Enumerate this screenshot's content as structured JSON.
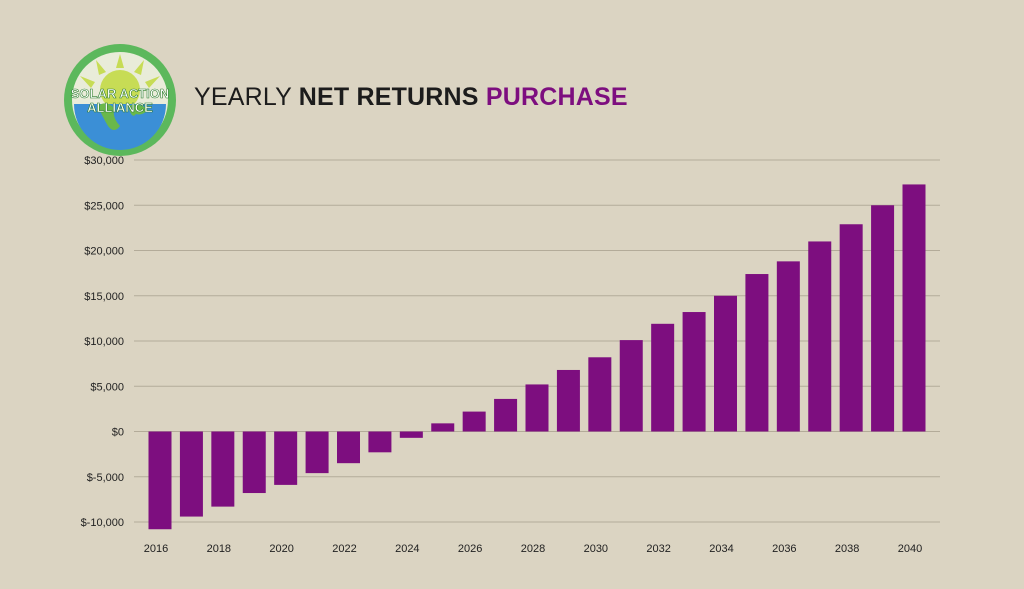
{
  "logo": {
    "line1": "SOLAR ACTION",
    "line2": "ALLIANCE"
  },
  "title": {
    "part1": "YEARLY ",
    "part2": "NET RETURNS ",
    "part3": "PURCHASE"
  },
  "colors": {
    "background": "#dbd4c2",
    "bar": "#7d0e7f",
    "grid": "#b3ab99",
    "title_accent": "#7d0e7f",
    "logo_green": "#5cb85c",
    "logo_blue": "#3b8fd6"
  },
  "chart_data": {
    "type": "bar",
    "title": "YEARLY NET RETURNS PURCHASE",
    "xlabel": "",
    "ylabel": "",
    "ylim": [
      -10000,
      30000
    ],
    "yticks": [
      30000,
      25000,
      20000,
      15000,
      10000,
      5000,
      0,
      -5000,
      -10000
    ],
    "ytick_labels": [
      "$30,000",
      "$25,000",
      "$20,000",
      "$15,000",
      "$10,000",
      "$5,000",
      "$0",
      "$-5,000",
      "$-10,000"
    ],
    "categories": [
      "2016",
      "2017",
      "2018",
      "2019",
      "2020",
      "2021",
      "2022",
      "2023",
      "2024",
      "2025",
      "2026",
      "2027",
      "2028",
      "2029",
      "2030",
      "2031",
      "2032",
      "2033",
      "2034",
      "2035",
      "2036",
      "2037",
      "2038",
      "2039",
      "2040"
    ],
    "xtick_labels": [
      "2016",
      "2018",
      "2020",
      "2022",
      "2024",
      "2026",
      "2028",
      "2030",
      "2032",
      "2034",
      "2036",
      "2038",
      "2040"
    ],
    "values": [
      -10800,
      -9400,
      -8300,
      -6800,
      -5900,
      -4600,
      -3500,
      -2300,
      -700,
      900,
      2200,
      3600,
      5200,
      6800,
      8200,
      10100,
      11900,
      13200,
      15000,
      17400,
      18800,
      21000,
      22900,
      25000,
      27300
    ],
    "grid": true,
    "legend": "none"
  }
}
